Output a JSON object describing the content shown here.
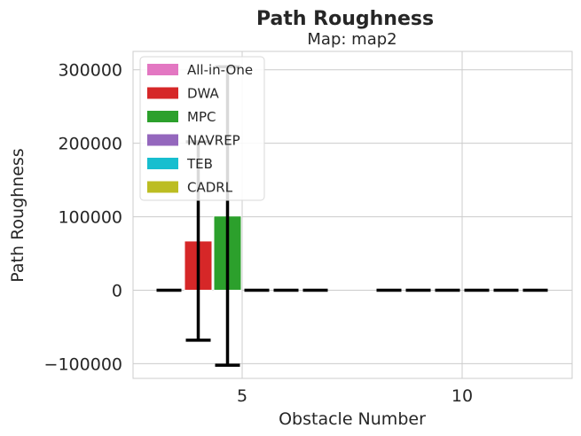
{
  "chart_data": {
    "type": "bar",
    "title": "Path Roughness",
    "subtitle": "Map: map2",
    "xlabel": "Obstacle Number",
    "ylabel": "Path Roughness",
    "ylim": [
      -120000,
      325000
    ],
    "yticks": [
      -100000,
      0,
      100000,
      200000,
      300000
    ],
    "ytick_labels": [
      "−100000",
      "0",
      "100000",
      "200000",
      "300000"
    ],
    "xticks": [
      5,
      10
    ],
    "xtick_labels": [
      "5",
      "10"
    ],
    "grid": true,
    "legend_position": "top-left",
    "groups": [
      {
        "obstacles": 5,
        "x": 5
      },
      {
        "obstacles": 10,
        "x": 10
      }
    ],
    "series": [
      {
        "name": "All-in-One",
        "color": "#e377c2",
        "values": [
          0,
          0
        ],
        "errors": [
          0,
          0
        ]
      },
      {
        "name": "DWA",
        "color": "#d62728",
        "values": [
          67000,
          0
        ],
        "errors": [
          135000,
          0
        ]
      },
      {
        "name": "MPC",
        "color": "#2ca02c",
        "values": [
          101000,
          0
        ],
        "errors": [
          203000,
          0
        ]
      },
      {
        "name": "NAVREP",
        "color": "#9467bd",
        "values": [
          0,
          0
        ],
        "errors": [
          0,
          0
        ]
      },
      {
        "name": "TEB",
        "color": "#17becf",
        "values": [
          0,
          0
        ],
        "errors": [
          0,
          0
        ]
      },
      {
        "name": "CADRL",
        "color": "#bcbd22",
        "values": [
          0,
          0
        ],
        "errors": [
          0,
          0
        ]
      }
    ]
  }
}
